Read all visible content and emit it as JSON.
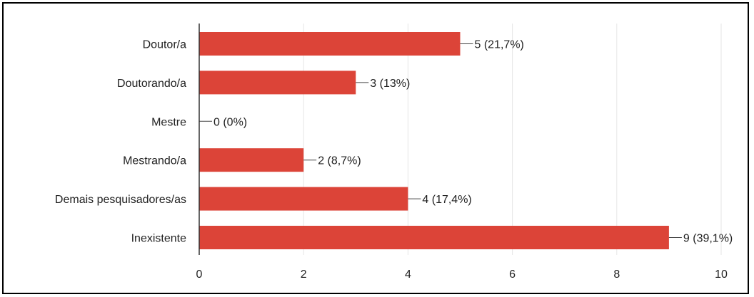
{
  "chart_data": {
    "type": "bar",
    "orientation": "horizontal",
    "title": "",
    "xlabel": "",
    "ylabel": "",
    "categories": [
      "Doutor/a",
      "Doutorando/a",
      "Mestre",
      "Mestrando/a",
      "Demais pesquisadores/as",
      "Inexistente"
    ],
    "values": [
      5,
      3,
      0,
      2,
      4,
      9
    ],
    "data_labels": [
      "5 (21,7%)",
      "3 (13%)",
      "0 (0%)",
      "2 (8,7%)",
      "4 (17,4%)",
      "9 (39,1%)"
    ],
    "xlim": [
      0,
      10
    ],
    "x_ticks": [
      0,
      2,
      4,
      6,
      8,
      10
    ],
    "grid": true,
    "bar_color": "#dc4438",
    "grid_color": "#e6e6e6",
    "axis_color": "#333333"
  }
}
